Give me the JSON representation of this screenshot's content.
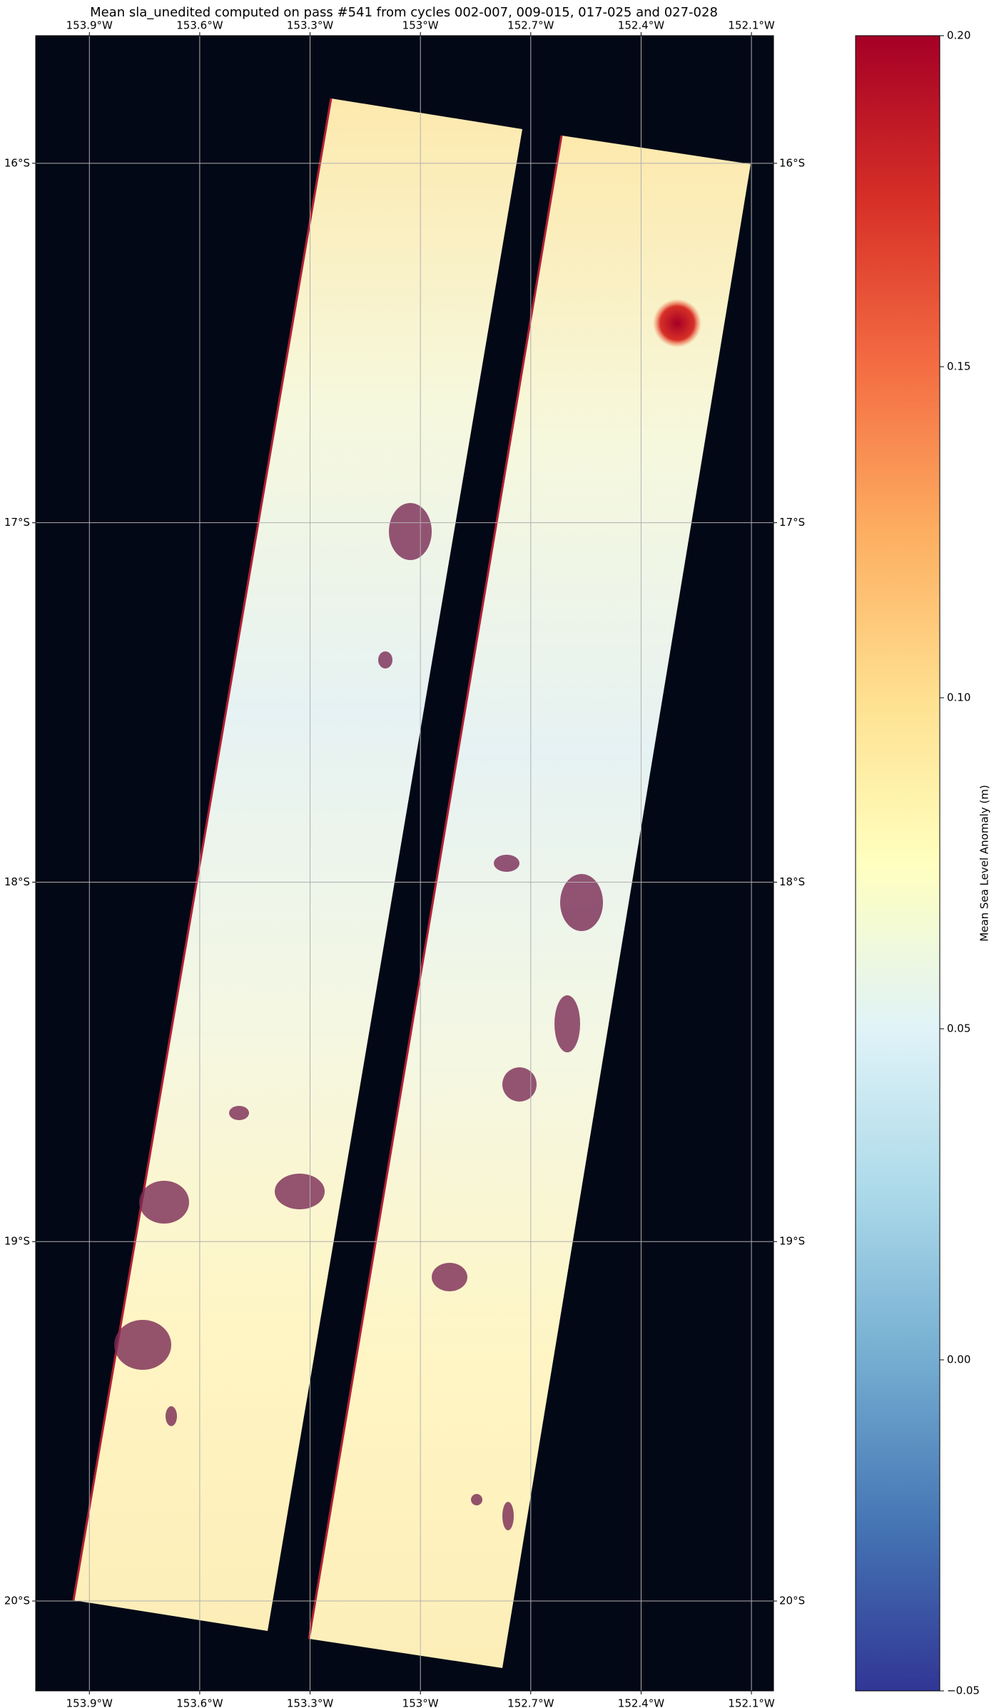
{
  "chart_data": {
    "type": "map",
    "title": "Mean sla_unedited computed on pass #541 from cycles 002-007, 009-015, 017-025 and 027-028",
    "xlim": [
      -154.046,
      -152.04
    ],
    "ylim": [
      -20.25,
      -15.645
    ],
    "xticks": [
      {
        "value": -153.9,
        "label": "153.9°W"
      },
      {
        "value": -153.6,
        "label": "153.6°W"
      },
      {
        "value": -153.3,
        "label": "153.3°W"
      },
      {
        "value": -153.0,
        "label": "153°W"
      },
      {
        "value": -152.7,
        "label": "152.7°W"
      },
      {
        "value": -152.4,
        "label": "152.4°W"
      },
      {
        "value": -152.1,
        "label": "152.1°W"
      }
    ],
    "yticks": [
      {
        "value": -16,
        "label": "16°S"
      },
      {
        "value": -17,
        "label": "17°S"
      },
      {
        "value": -18,
        "label": "18°S"
      },
      {
        "value": -19,
        "label": "19°S"
      },
      {
        "value": -20,
        "label": "20°S"
      }
    ],
    "grid": true,
    "colorbar": {
      "label": "Mean Sea Level Anomaly (m)",
      "lim": [
        -0.05,
        0.2
      ],
      "ticks": [
        {
          "value": -0.05,
          "label": "−0.05"
        },
        {
          "value": 0,
          "label": "0.00"
        },
        0.05,
        {
          "value": 0.1,
          "label": "0.10"
        },
        0.15,
        {
          "value": 0.2,
          "label": "0.20"
        }
      ],
      "colormap": [
        "#313695",
        "#4575b4",
        "#74add1",
        "#abd9e9",
        "#e0f3f8",
        "#ffffbf",
        "#fee090",
        "#fdae61",
        "#f46d43",
        "#d73027",
        "#a50026"
      ]
    }
  }
}
